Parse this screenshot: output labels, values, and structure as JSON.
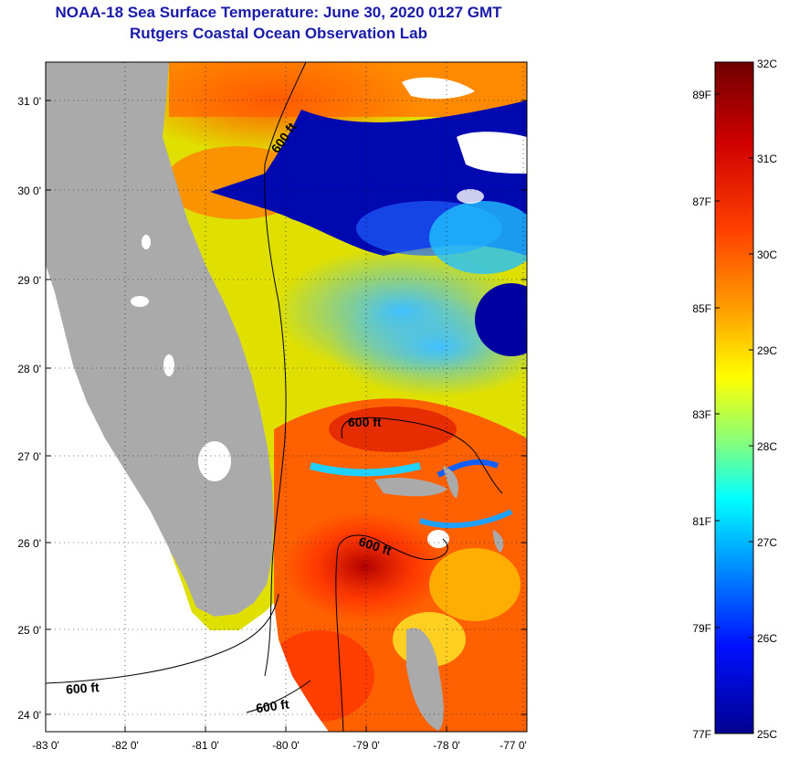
{
  "header": {
    "title": "NOAA-18 Sea Surface Temperature:  June 30, 2020 0127 GMT",
    "subtitle": "Rutgers Coastal Ocean Observation Lab"
  },
  "map": {
    "lat_ticks": [
      "31 0'",
      "30 0'",
      "29 0'",
      "28 0'",
      "27 0'",
      "26 0'",
      "25 0'",
      "24 0'"
    ],
    "lon_ticks": [
      "-83 0'",
      "-82 0'",
      "-81 0'",
      "-80 0'",
      "-79 0'",
      "-78 0'",
      "-77 0'"
    ],
    "lat_range": [
      23.8,
      31.4
    ],
    "lon_range": [
      -83.0,
      -76.9
    ],
    "contour_labels": [
      "600 ft",
      "600 ft",
      "600 ft",
      "600 ft",
      "600 ft"
    ],
    "land_color": "#aaaaaa",
    "cloud_color": "#ffffff"
  },
  "colorbar": {
    "celsius_labels": [
      "32C",
      "31C",
      "30C",
      "29C",
      "28C",
      "27C",
      "26C",
      "25C"
    ],
    "fahrenheit_labels": [
      "89F",
      "87F",
      "85F",
      "83F",
      "81F",
      "79F",
      "77F"
    ],
    "range_c": [
      25,
      32
    ],
    "colors": [
      "#00008f",
      "#0000ff",
      "#0080ff",
      "#00ffff",
      "#80ff80",
      "#ffff00",
      "#ff8000",
      "#ff0000",
      "#800000"
    ]
  }
}
